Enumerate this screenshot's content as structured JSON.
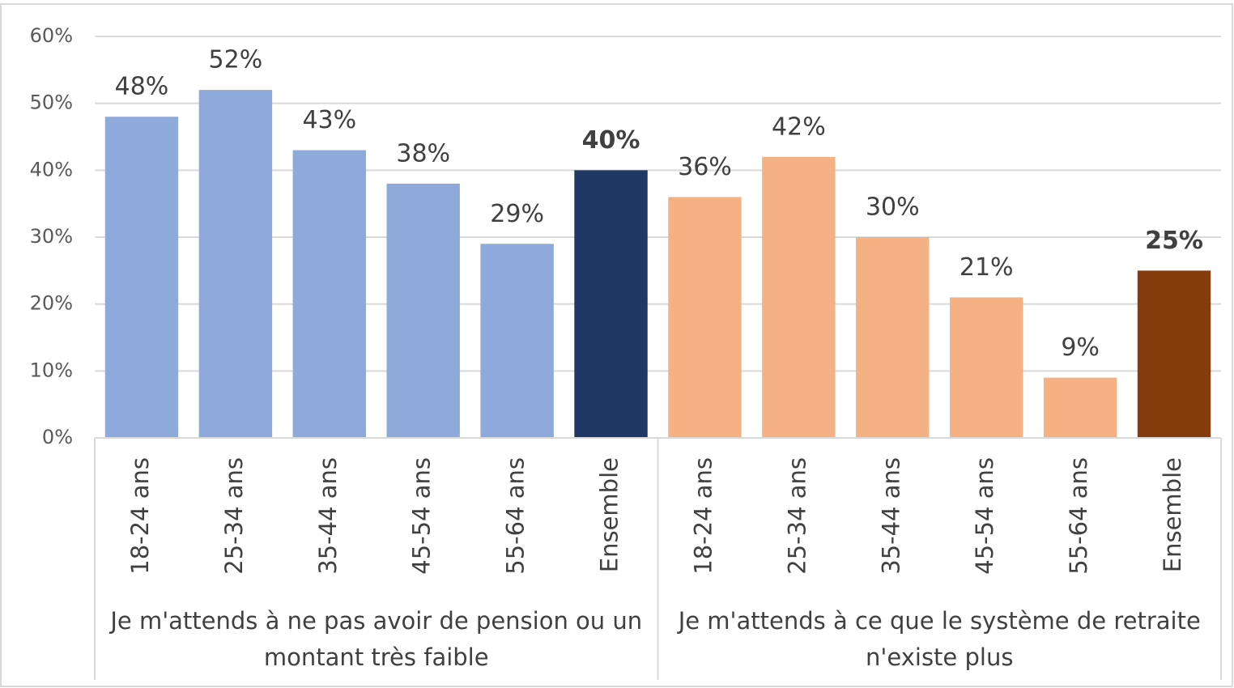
{
  "chart_data": {
    "type": "bar",
    "series": [
      {
        "name": "Je m'attends à ne pas avoir de pension ou un montant très faible",
        "categories": [
          "18-24 ans",
          "25-34 ans",
          "35-44 ans",
          "45-54 ans",
          "55-64 ans",
          "Ensemble"
        ],
        "values": [
          48,
          52,
          43,
          38,
          29,
          40
        ],
        "value_labels": [
          "48%",
          "52%",
          "43%",
          "38%",
          "29%",
          "40%"
        ],
        "colors": [
          "#8eaadb",
          "#8eaadb",
          "#8eaadb",
          "#8eaadb",
          "#8eaadb",
          "#203864"
        ]
      },
      {
        "name": "Je m'attends à ce que le système de retraite n'existe plus",
        "categories": [
          "18-24 ans",
          "25-34 ans",
          "35-44 ans",
          "45-54 ans",
          "55-64 ans",
          "Ensemble"
        ],
        "values": [
          36,
          42,
          30,
          21,
          9,
          25
        ],
        "value_labels": [
          "36%",
          "42%",
          "30%",
          "21%",
          "9%",
          "25%"
        ],
        "colors": [
          "#f4b183",
          "#f4b183",
          "#f4b183",
          "#f4b183",
          "#f4b183",
          "#843c0c"
        ]
      }
    ],
    "ylim": [
      0,
      60
    ],
    "yticks": [
      {
        "value": 0,
        "label": "0%"
      },
      {
        "value": 10,
        "label": "10%"
      },
      {
        "value": 20,
        "label": "20%"
      },
      {
        "value": 30,
        "label": "30%"
      },
      {
        "value": 40,
        "label": "40%"
      },
      {
        "value": 50,
        "label": "50%"
      },
      {
        "value": 60,
        "label": "60%"
      }
    ],
    "grid": true
  }
}
